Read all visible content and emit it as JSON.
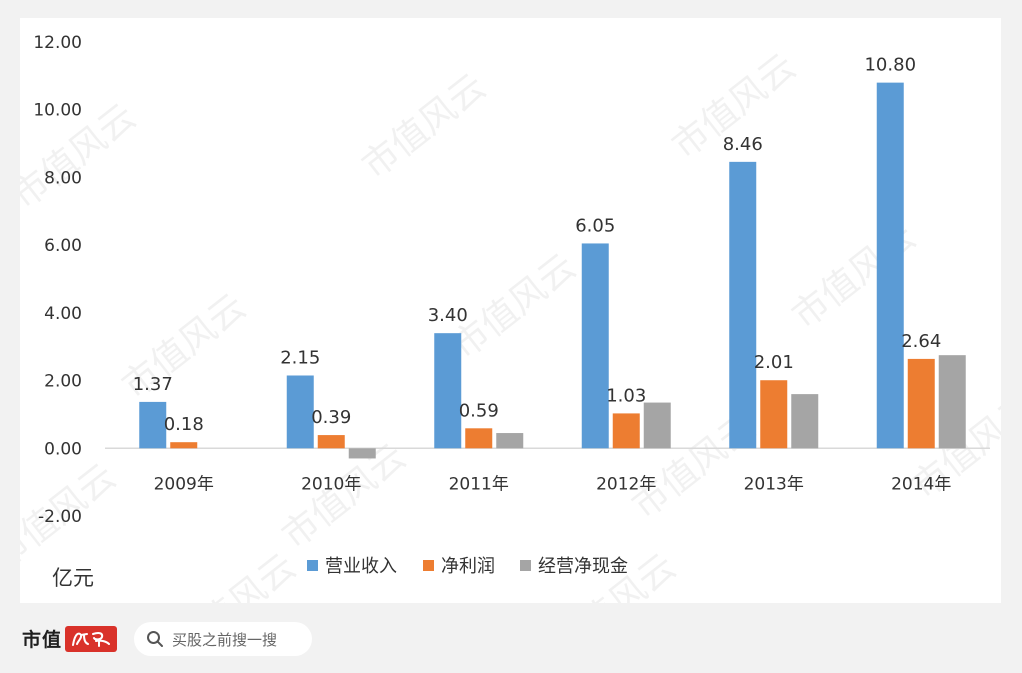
{
  "chart_data": {
    "type": "bar",
    "categories": [
      "2009年",
      "2010年",
      "2011年",
      "2012年",
      "2013年",
      "2014年"
    ],
    "series": [
      {
        "name": "营业收入",
        "color": "#5b9bd5",
        "values": [
          1.37,
          2.15,
          3.4,
          6.05,
          8.46,
          10.8
        ],
        "labels": [
          "1.37",
          "2.15",
          "3.40",
          "6.05",
          "8.46",
          "10.80"
        ]
      },
      {
        "name": "净利润",
        "color": "#ed7d31",
        "values": [
          0.18,
          0.39,
          0.59,
          1.03,
          2.01,
          2.64
        ],
        "labels": [
          "0.18",
          "0.39",
          "0.59",
          "1.03",
          "2.01",
          "2.64"
        ]
      },
      {
        "name": "经营净现金",
        "color": "#a5a5a5",
        "values": [
          0.0,
          -0.3,
          0.45,
          1.35,
          1.6,
          2.75
        ],
        "labels": []
      }
    ],
    "ylim": [
      -2,
      12
    ],
    "yticks": [
      "-2.00",
      "0.00",
      "2.00",
      "4.00",
      "6.00",
      "8.00",
      "10.00",
      "12.00"
    ],
    "ylabel": "亿元",
    "legend_position": "bottom-center",
    "grid": false
  },
  "watermark": "市值风云",
  "footer": {
    "brand": "市值",
    "brand_seal": "风云",
    "search_placeholder": "买股之前搜一搜"
  }
}
